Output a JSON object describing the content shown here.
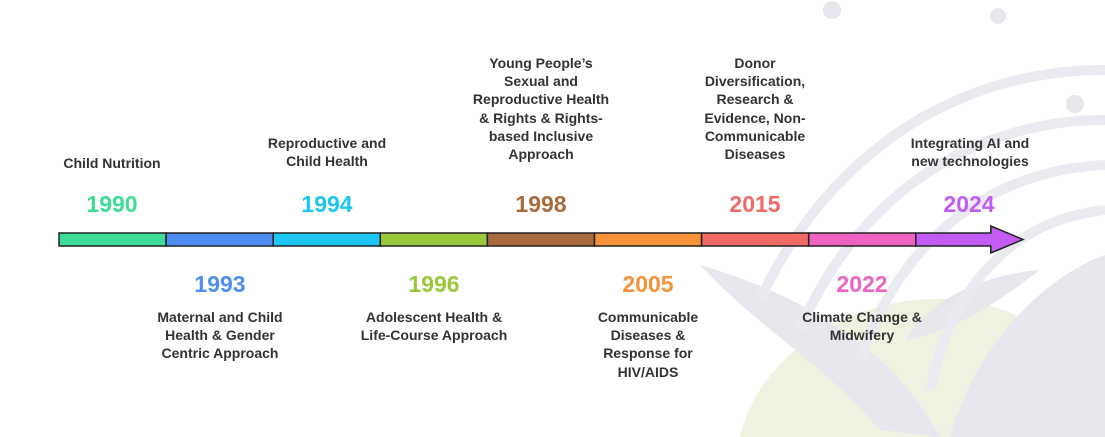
{
  "colors": {
    "background_decoration": "#e6e8ee",
    "background_leaf": "#eef2e0",
    "desc_text": "#333333",
    "outline": "#222222"
  },
  "milestones": [
    {
      "year": "1990",
      "label": "Child Nutrition",
      "color": "#3ddc97"
    },
    {
      "year": "1993",
      "label": "Maternal and Child Health & Gender Centric Approach",
      "color": "#4d8ef0"
    },
    {
      "year": "1994",
      "label": "Reproductive and Child Health",
      "color": "#1cc6f0"
    },
    {
      "year": "1996",
      "label": "Adolescent Health & Life-Course Approach",
      "color": "#99c93b"
    },
    {
      "year": "1998",
      "label": "Young People’s Sexual and Reproductive Health & Rights & Rights-based Inclusive Approach",
      "color": "#a86b3e"
    },
    {
      "year": "2005",
      "label": "Communicable Diseases & Response for HIV/AIDS",
      "color": "#f5933a"
    },
    {
      "year": "2015",
      "label": "Donor Diversification, Research & Evidence, Non-Communicable Diseases",
      "color": "#f26a66"
    },
    {
      "year": "2022",
      "label": "Climate Change & Midwifery",
      "color": "#ee62c0"
    },
    {
      "year": "2024",
      "label": "Integrating AI and new technologies",
      "color": "#c25cf2"
    }
  ]
}
